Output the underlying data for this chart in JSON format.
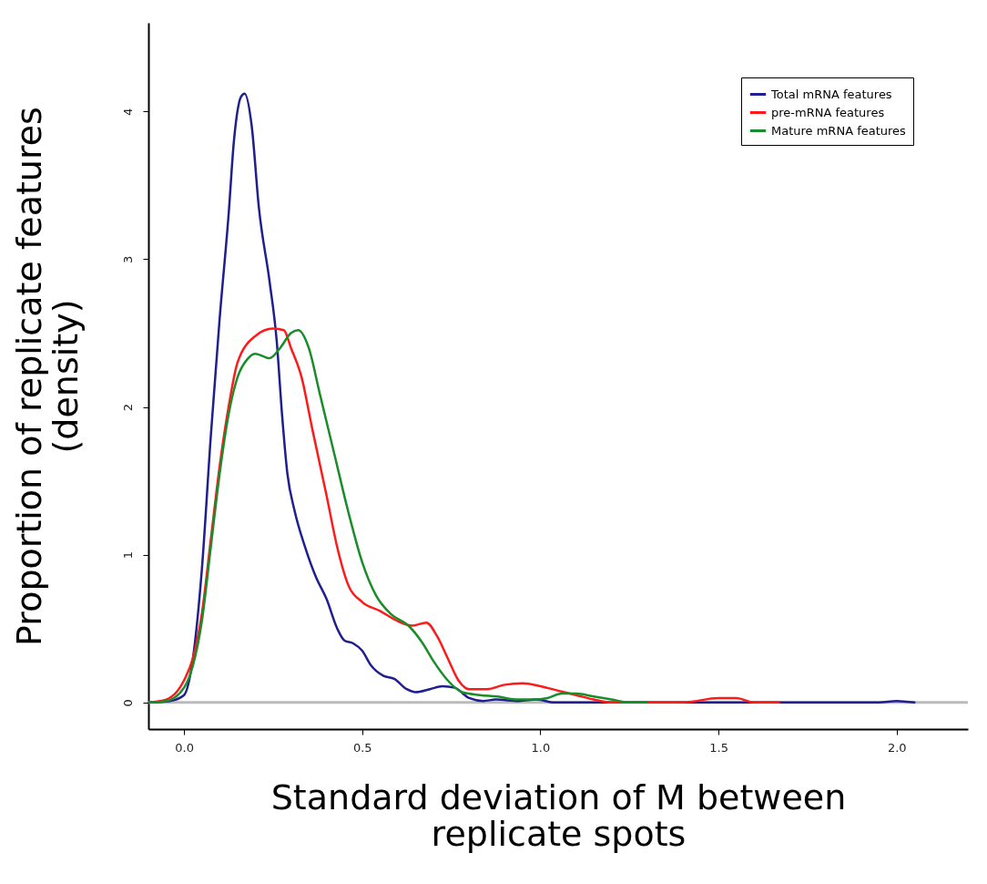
{
  "chart_data": {
    "type": "line",
    "xlabel": "Standard deviation of M between\nreplicate spots",
    "ylabel": "Proportion of replicate features\n(density)",
    "xlim": [
      -0.1,
      2.2
    ],
    "ylim": [
      -0.18,
      4.6
    ],
    "xticks": [
      {
        "value": 0,
        "label": "0.0"
      },
      {
        "value": 0.5,
        "label": "0.5"
      },
      {
        "value": 1,
        "label": "1.0"
      },
      {
        "value": 1.5,
        "label": "1.5"
      },
      {
        "value": 2,
        "label": "2.0"
      }
    ],
    "yticks": [
      0,
      1,
      2,
      3,
      4
    ],
    "grid": false,
    "legend": "top right",
    "marker": "none",
    "line_style": "solid",
    "ref_lines": [
      {
        "axis": "y",
        "value": 0,
        "color": "#bbbbbb"
      }
    ],
    "series": [
      {
        "name": "Total mRNA features",
        "color": "#1f1f8f",
        "x": [
          -0.1,
          -0.04,
          0.0,
          0.025,
          0.05,
          0.075,
          0.1,
          0.125,
          0.14,
          0.16,
          0.17,
          0.19,
          0.21,
          0.24,
          0.26,
          0.275,
          0.29,
          0.31,
          0.34,
          0.37,
          0.4,
          0.43,
          0.45,
          0.475,
          0.5,
          0.525,
          0.56,
          0.59,
          0.625,
          0.65,
          0.69,
          0.725,
          0.76,
          0.8,
          0.84,
          0.875,
          0.94,
          0.99,
          1.04,
          1.3,
          1.95,
          2.0,
          2.05
        ],
        "values": [
          0,
          0.01,
          0.05,
          0.3,
          0.9,
          1.8,
          2.6,
          3.3,
          3.8,
          4.1,
          4.12,
          3.9,
          3.35,
          2.85,
          2.45,
          1.95,
          1.55,
          1.3,
          1.05,
          0.85,
          0.7,
          0.5,
          0.42,
          0.4,
          0.35,
          0.25,
          0.18,
          0.16,
          0.09,
          0.07,
          0.09,
          0.11,
          0.1,
          0.03,
          0.01,
          0.02,
          0.01,
          0.02,
          0,
          0,
          0,
          0.01,
          0
        ]
      },
      {
        "name": "pre-mRNA features",
        "color": "#ff1a1a",
        "x": [
          -0.1,
          -0.05,
          0.0,
          0.025,
          0.05,
          0.075,
          0.1,
          0.125,
          0.15,
          0.2,
          0.25,
          0.28,
          0.3,
          0.33,
          0.36,
          0.4,
          0.43,
          0.46,
          0.5,
          0.55,
          0.6,
          0.64,
          0.68,
          0.71,
          0.74,
          0.77,
          0.8,
          0.85,
          0.9,
          0.95,
          1.0,
          1.05,
          1.1,
          1.15,
          1.2,
          1.4,
          1.5,
          1.55,
          1.6,
          1.67
        ],
        "values": [
          0,
          0.02,
          0.15,
          0.3,
          0.6,
          1.1,
          1.6,
          2.0,
          2.3,
          2.48,
          2.53,
          2.52,
          2.4,
          2.2,
          1.85,
          1.4,
          1.05,
          0.8,
          0.68,
          0.62,
          0.55,
          0.52,
          0.54,
          0.45,
          0.3,
          0.15,
          0.09,
          0.09,
          0.12,
          0.13,
          0.11,
          0.08,
          0.05,
          0.02,
          0,
          0,
          0.03,
          0.03,
          0,
          0
        ]
      },
      {
        "name": "Mature mRNA features",
        "color": "#1a8c2a",
        "x": [
          -0.1,
          -0.05,
          0.0,
          0.025,
          0.05,
          0.075,
          0.1,
          0.125,
          0.15,
          0.18,
          0.2,
          0.24,
          0.27,
          0.3,
          0.32,
          0.35,
          0.38,
          0.42,
          0.46,
          0.5,
          0.54,
          0.58,
          0.63,
          0.67,
          0.7,
          0.74,
          0.78,
          0.83,
          0.88,
          0.93,
          0.98,
          1.02,
          1.06,
          1.1,
          1.15,
          1.2,
          1.25,
          1.3
        ],
        "values": [
          0,
          0.01,
          0.1,
          0.25,
          0.55,
          1.05,
          1.55,
          1.95,
          2.2,
          2.33,
          2.36,
          2.33,
          2.4,
          2.5,
          2.52,
          2.4,
          2.1,
          1.7,
          1.3,
          0.95,
          0.72,
          0.6,
          0.52,
          0.4,
          0.28,
          0.15,
          0.07,
          0.05,
          0.04,
          0.02,
          0.02,
          0.03,
          0.06,
          0.06,
          0.04,
          0.02,
          0,
          0
        ]
      }
    ]
  }
}
